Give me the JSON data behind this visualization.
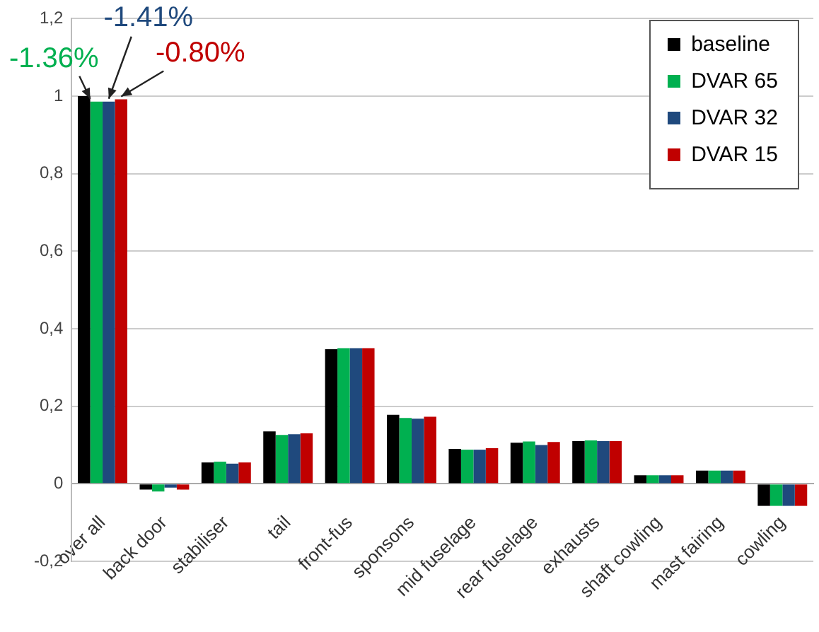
{
  "chart_data": {
    "type": "bar",
    "categories": [
      "over all",
      "back door",
      "stabiliser",
      "tail",
      "front-fus",
      "sponsons",
      "mid fuselage",
      "rear fuselage",
      "exhausts",
      "shaft cowling",
      "mast fairing",
      "cowling"
    ],
    "series": [
      {
        "name": "baseline",
        "color": "#000000",
        "values": [
          1.0,
          -0.015,
          0.055,
          0.135,
          0.347,
          0.178,
          0.09,
          0.106,
          0.11,
          0.022,
          0.034,
          -0.057
        ]
      },
      {
        "name": "DVAR 65",
        "color": "#00b050",
        "values": [
          0.986,
          -0.02,
          0.057,
          0.126,
          0.35,
          0.17,
          0.088,
          0.109,
          0.112,
          0.022,
          0.034,
          -0.057
        ]
      },
      {
        "name": "DVAR 32",
        "color": "#1f497d",
        "values": [
          0.986,
          -0.01,
          0.052,
          0.128,
          0.35,
          0.168,
          0.088,
          0.1,
          0.11,
          0.022,
          0.034,
          -0.057
        ]
      },
      {
        "name": "DVAR 15",
        "color": "#c00000",
        "values": [
          0.992,
          -0.015,
          0.055,
          0.13,
          0.35,
          0.173,
          0.092,
          0.108,
          0.11,
          0.022,
          0.034,
          -0.057
        ]
      }
    ],
    "annotations": [
      {
        "text": "-1.36%",
        "x": "over all",
        "y": 0.986
      },
      {
        "text": "-1.41%",
        "x": "over all",
        "y": 0.986
      },
      {
        "text": "-0.80%",
        "x": "over all",
        "y": 0.992
      }
    ],
    "ylim": [
      -0.2,
      1.2
    ],
    "yticks": [
      {
        "value": -0.2,
        "label": "-0,2"
      },
      0,
      {
        "value": 0.2,
        "label": "0,2"
      },
      {
        "value": 0.4,
        "label": "0,4"
      },
      {
        "value": 0.6,
        "label": "0,6"
      },
      {
        "value": 0.8,
        "label": "0,8"
      },
      1,
      {
        "value": 1.2,
        "label": "1,2"
      }
    ],
    "grid": "y",
    "legend": "top right"
  }
}
